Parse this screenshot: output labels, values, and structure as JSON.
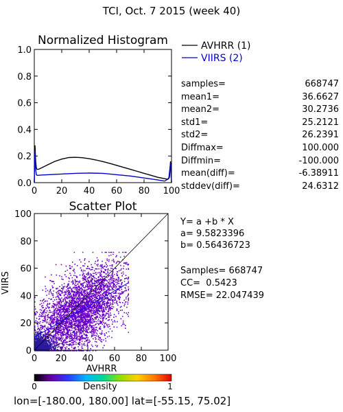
{
  "header": {
    "title": "TCI,  Oct. 7 2015 (week 40)"
  },
  "chart_data": [
    {
      "type": "line",
      "title": "Normalized Histogram",
      "xlabel": "",
      "ylabel": "",
      "xlim": [
        0,
        100
      ],
      "ylim": [
        0,
        1.0
      ],
      "xticks": [
        "0",
        "20",
        "40",
        "60",
        "80",
        "100"
      ],
      "yticks": [
        "0.0",
        "0.2",
        "0.4",
        "0.6",
        "0.8",
        "1.0"
      ],
      "legend_position": "right",
      "series": [
        {
          "name": "AVHRR (1)",
          "color": "#000000",
          "x": [
            0,
            0.5,
            1,
            1.5,
            2,
            3,
            5,
            10,
            15,
            20,
            25,
            30,
            35,
            40,
            45,
            50,
            55,
            60,
            65,
            70,
            75,
            80,
            85,
            90,
            95,
            97,
            98.5,
            99.3,
            100
          ],
          "y": [
            0.0,
            0.28,
            0.16,
            0.11,
            0.1,
            0.1,
            0.11,
            0.135,
            0.16,
            0.177,
            0.188,
            0.19,
            0.187,
            0.18,
            0.17,
            0.158,
            0.145,
            0.13,
            0.115,
            0.1,
            0.085,
            0.07,
            0.055,
            0.04,
            0.03,
            0.025,
            0.04,
            0.16,
            0.0
          ]
        },
        {
          "name": "VIIRS (2)",
          "color": "#0000cc",
          "x": [
            0,
            0.5,
            1,
            1.5,
            2,
            3,
            5,
            10,
            20,
            30,
            40,
            50,
            60,
            70,
            80,
            90,
            95,
            98,
            99.3,
            100
          ],
          "y": [
            0.0,
            0.24,
            0.1,
            0.06,
            0.055,
            0.055,
            0.057,
            0.06,
            0.065,
            0.07,
            0.072,
            0.07,
            0.06,
            0.05,
            0.035,
            0.02,
            0.012,
            0.03,
            0.15,
            0.0
          ]
        }
      ]
    },
    {
      "type": "scatter",
      "title": "Scatter Plot",
      "xlabel": "AVHRR",
      "ylabel": "VIIRS",
      "xlim": [
        0,
        100
      ],
      "ylim": [
        0,
        100
      ],
      "xticks": [
        "0",
        "20",
        "40",
        "60",
        "80",
        "100"
      ],
      "yticks": [
        "0",
        "20",
        "40",
        "60",
        "80",
        "100"
      ],
      "regression": {
        "a": 9.5823396,
        "b": 0.56436723
      },
      "reference_line": "y = x",
      "colorbar": {
        "label": "Density",
        "min_label": "0",
        "max_label": "1",
        "colors": [
          "#000000",
          "#6a00a8",
          "#2b3cff",
          "#00b4ff",
          "#00d89a",
          "#8fe000",
          "#ffd000",
          "#ff7a00",
          "#e00000"
        ]
      },
      "point_color": "#6a00c8"
    }
  ],
  "stats": [
    {
      "name": "samples=",
      "value": "668747"
    },
    {
      "name": "mean1=",
      "value": "36.6627"
    },
    {
      "name": "mean2=",
      "value": "30.2736"
    },
    {
      "name": "std1=",
      "value": "25.2121"
    },
    {
      "name": "std2=",
      "value": "26.2391"
    },
    {
      "name": "Diffmax=",
      "value": "100.000"
    },
    {
      "name": "Diffmin=",
      "value": "-100.000"
    },
    {
      "name": "mean(diff)=",
      "value": "-6.38911"
    },
    {
      "name": "stddev(diff)=",
      "value": "24.6312"
    }
  ],
  "regression_text": {
    "equation": "Y= a +b * X",
    "a_line": "a= 9.5823396",
    "b_line": "b= 0.56436723",
    "samples_line": "Samples= 668747",
    "cc_line": "CC=  0.5423",
    "rmse_line": "RMSE= 22.047439"
  },
  "footer": {
    "domain": "lon=[-180.00, 180.00] lat=[-55.15, 75.02]"
  }
}
